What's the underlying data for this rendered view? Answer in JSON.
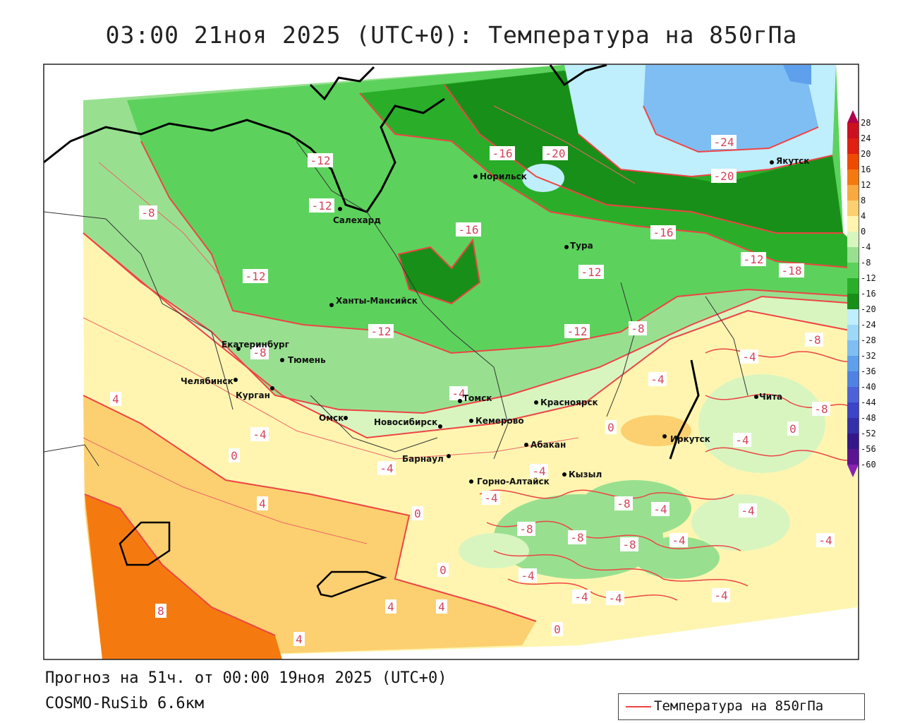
{
  "title": "03:00 21ноя 2025 (UTC+0): Температура на 850гПа",
  "forecast_line": "Прогноз на 51ч. от 00:00 19ноя 2025 (UTC+0)",
  "model_line": "COSMO-RuSib 6.6км",
  "legend": {
    "label": "Температура на 850гПа",
    "line_color": "#e44"
  },
  "colorbar": {
    "labels": [
      "28",
      "24",
      "20",
      "16",
      "12",
      "8",
      "4",
      "0",
      "-4",
      "-8",
      "-12",
      "-16",
      "-20",
      "-24",
      "-28",
      "-32",
      "-36",
      "-40",
      "-44",
      "-48",
      "-52",
      "-56",
      "-60"
    ],
    "colors": [
      "#b0004a",
      "#cc1020",
      "#e02010",
      "#ee4a00",
      "#f47a10",
      "#f8aa40",
      "#fcd070",
      "#fff5b0",
      "#d8f5c0",
      "#98e090",
      "#5cd25c",
      "#2aae2a",
      "#188f18",
      "#bfeefc",
      "#9ed8f8",
      "#7ebef2",
      "#5fa0ec",
      "#4f82e2",
      "#4d62d8",
      "#3c44c8",
      "#3430a8",
      "#34188a",
      "#5a1690",
      "#8a20b4"
    ]
  },
  "cities": [
    {
      "name": "Якутск"
    },
    {
      "name": "Норильск"
    },
    {
      "name": "Салехард"
    },
    {
      "name": "Тура"
    },
    {
      "name": "Ханты-Мансийск"
    },
    {
      "name": "Екатеринбург"
    },
    {
      "name": "Тюмень"
    },
    {
      "name": "Челябинск"
    },
    {
      "name": "Курган"
    },
    {
      "name": "Омск"
    },
    {
      "name": "Новосибирск"
    },
    {
      "name": "Томск"
    },
    {
      "name": "Кемерово"
    },
    {
      "name": "Красноярск"
    },
    {
      "name": "Барнаул"
    },
    {
      "name": "Абакан"
    },
    {
      "name": "Кызыл"
    },
    {
      "name": "Горно-Алтайск"
    },
    {
      "name": "Иркутск"
    },
    {
      "name": "Чита"
    }
  ],
  "isotherm_labels": [
    "-24",
    "-20",
    "-20",
    "-16",
    "-16",
    "-16",
    "-18",
    "-12",
    "-12",
    "-12",
    "-12",
    "-12",
    "-12",
    "-12",
    "-8",
    "-8",
    "-8",
    "-8",
    "-4",
    "-4",
    "-4",
    "-4",
    "-4",
    "-4",
    "-4",
    "-4",
    "-4",
    "-4",
    "-4",
    "-4",
    "-4",
    "-4",
    "-4",
    "-4",
    "0",
    "0",
    "0",
    "0",
    "0",
    "0",
    "4",
    "4",
    "4",
    "4",
    "4",
    "8",
    "-8",
    "-8",
    "-8",
    "-8",
    "-8"
  ]
}
